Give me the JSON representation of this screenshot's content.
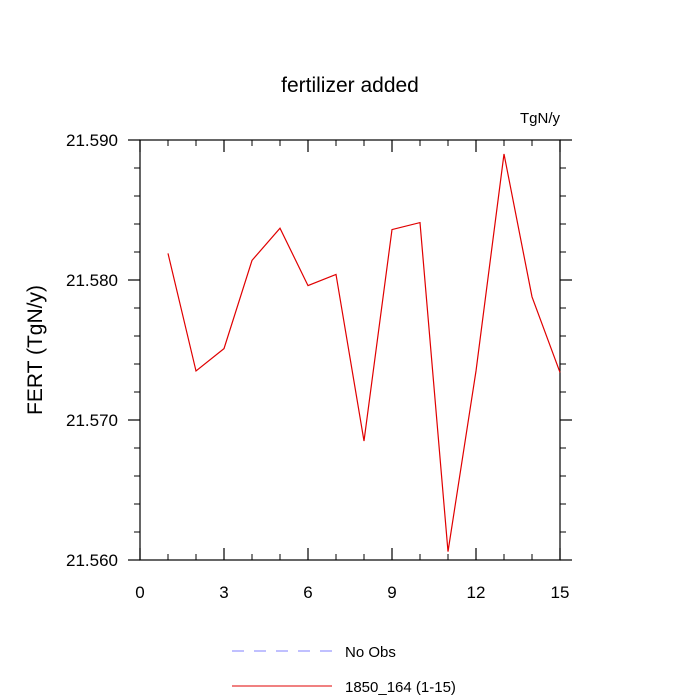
{
  "chart_data": {
    "type": "line",
    "title": "fertilizer added",
    "units_label": "TgN/y",
    "ylabel": "FERT  (TgN/y)",
    "xlabel": "",
    "xlim": [
      0,
      15
    ],
    "ylim": [
      21.56,
      21.59
    ],
    "x_ticks": [
      0,
      3,
      6,
      9,
      12,
      15
    ],
    "x_tick_labels": [
      "0",
      "3",
      "6",
      "9",
      "12",
      "15"
    ],
    "y_ticks": [
      21.56,
      21.57,
      21.58,
      21.59
    ],
    "y_tick_labels": [
      "21.560",
      "21.570",
      "21.580",
      "21.590"
    ],
    "grid": false,
    "legend_position": "bottom",
    "legend": [
      {
        "label": "No Obs",
        "color": "#8080ff",
        "style": "dashed"
      },
      {
        "label": "1850_164 (1-15)",
        "color": "#e00000",
        "style": "solid"
      }
    ],
    "series": [
      {
        "name": "1850_164 (1-15)",
        "color": "#e00000",
        "x": [
          1,
          2,
          3,
          4,
          5,
          6,
          7,
          8,
          9,
          10,
          11,
          12,
          13,
          14,
          15
        ],
        "y": [
          21.5819,
          21.5735,
          21.5751,
          21.5814,
          21.5837,
          21.5796,
          21.5804,
          21.5685,
          21.5836,
          21.5841,
          21.5606,
          21.5735,
          21.589,
          21.5788,
          21.5734
        ]
      }
    ]
  }
}
